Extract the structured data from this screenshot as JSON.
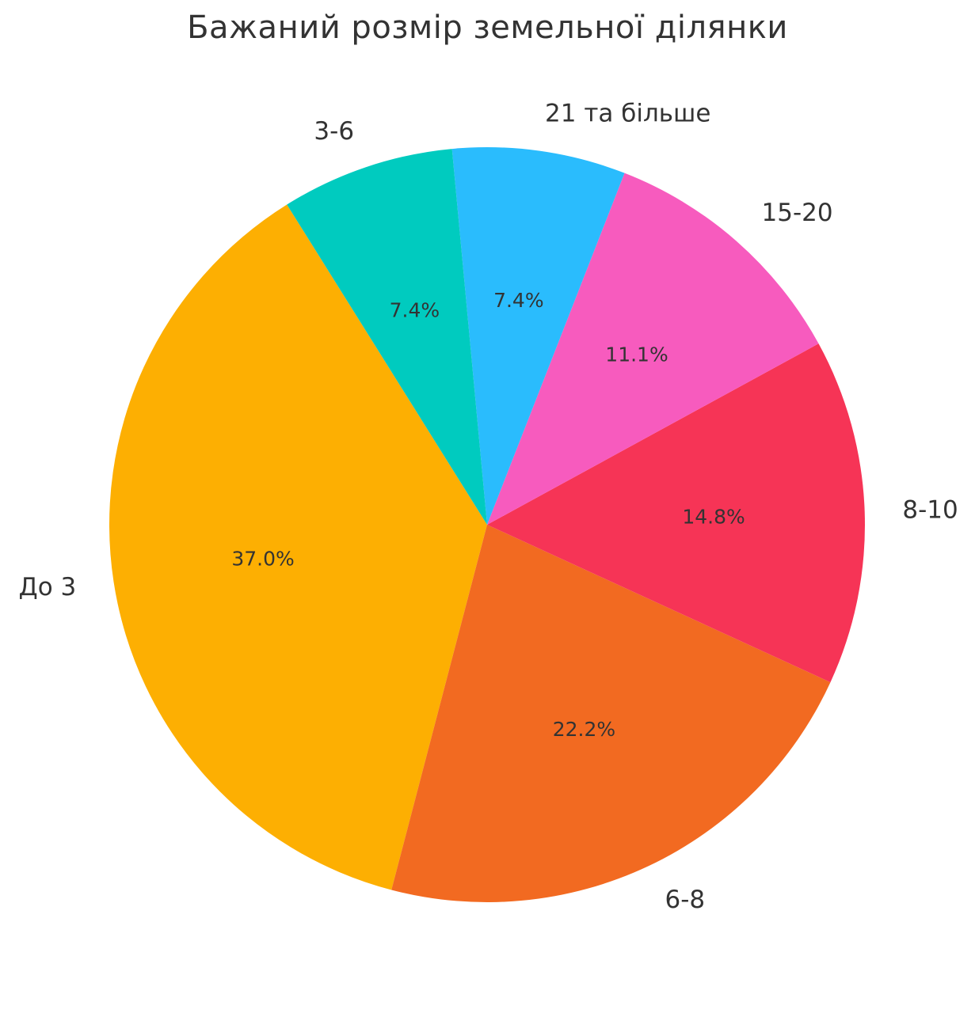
{
  "chart_data": {
    "type": "pie",
    "title": "Бажаний розмір земельної ділянки",
    "slices": [
      {
        "label": "До 3",
        "value": 37.0,
        "pct_label": "37.0%",
        "color": "#fdaf02"
      },
      {
        "label": "6-8",
        "value": 22.2,
        "pct_label": "22.2%",
        "color": "#f26a21"
      },
      {
        "label": "8-10",
        "value": 14.8,
        "pct_label": "14.8%",
        "color": "#f63456"
      },
      {
        "label": "15-20",
        "value": 11.1,
        "pct_label": "11.1%",
        "color": "#f75bbe"
      },
      {
        "label": "21 та більше",
        "value": 7.4,
        "pct_label": "7.4%",
        "color": "#2abcfd"
      },
      {
        "label": "3-6",
        "value": 7.4,
        "pct_label": "7.4%",
        "color": "#00cbbf"
      }
    ],
    "start_angle_deg": 122,
    "direction": "counterclockwise",
    "legend": "none"
  }
}
